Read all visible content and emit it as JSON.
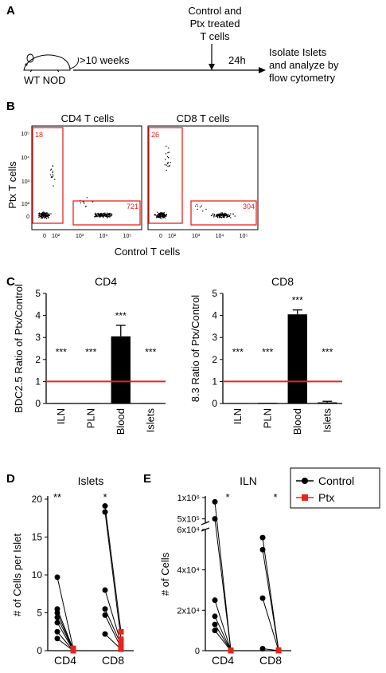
{
  "panels": {
    "A": {
      "letter": "A",
      "mouse_label": "WT NOD",
      "age_label": ">10 weeks",
      "treatment_label_line1": "Control and",
      "treatment_label_line2": "Ptx treated",
      "treatment_label_line3": "T cells",
      "time_label": "24h",
      "outcome_line1": "Isolate Islets",
      "outcome_line2": "and analyze by",
      "outcome_line3": "flow cytometry"
    },
    "B": {
      "letter": "B",
      "title_cd4": "CD4 T cells",
      "title_cd8": "CD8 T cells",
      "ylabel": "Ptx T cells",
      "xlabel": "Control T cells",
      "cd4_gate_ptx": "18",
      "cd4_gate_control": "721",
      "cd8_gate_ptx": "26",
      "cd8_gate_control": "304",
      "y_ticks": [
        "10⁵",
        "10⁴",
        "10³",
        "10²",
        "0"
      ],
      "x_ticks": [
        "0",
        "10²",
        "10³",
        "10⁴",
        "10⁵"
      ]
    },
    "C": {
      "letter": "C"
    },
    "D": {
      "letter": "D"
    },
    "E": {
      "letter": "E"
    }
  },
  "legend": {
    "control": "Control",
    "ptx": "Ptx"
  },
  "colors": {
    "control": "#000000",
    "ptx": "#e8231e",
    "gate": "#e8231e",
    "refline": "#e8231e"
  },
  "chart_data": [
    {
      "type": "bar",
      "panel": "C",
      "title": "CD4",
      "ylabel": "BDC2.5 Ratio of Ptx/Control",
      "categories": [
        "ILN",
        "PLN",
        "Blood",
        "Islets"
      ],
      "values": [
        0.02,
        0.02,
        3.05,
        0.02
      ],
      "errors": [
        0,
        0,
        0.5,
        0
      ],
      "significance": [
        "***",
        "***",
        "***",
        "***"
      ],
      "reference_line": 1,
      "ylim": [
        0,
        5
      ],
      "yticks": [
        "0",
        "1",
        "2",
        "3",
        "4",
        "5"
      ]
    },
    {
      "type": "bar",
      "panel": "C",
      "title": "CD8",
      "ylabel": "8.3 Ratio of Ptx/Control",
      "categories": [
        "ILN",
        "PLN",
        "Blood",
        "Islets"
      ],
      "values": [
        0.02,
        0.03,
        4.05,
        0.05
      ],
      "errors": [
        0,
        0,
        0.2,
        0.05
      ],
      "significance": [
        "***",
        "***",
        "***",
        "***"
      ],
      "reference_line": 1,
      "ylim": [
        0,
        5
      ],
      "yticks": [
        "0",
        "1",
        "2",
        "3",
        "4",
        "5"
      ]
    },
    {
      "type": "scatter",
      "panel": "D",
      "title": "Islets",
      "ylabel": "# of Cells per Islet",
      "groups": [
        "CD4",
        "CD8"
      ],
      "significance": [
        "**",
        "*"
      ],
      "ylim": [
        0,
        20
      ],
      "yticks": [
        "0",
        "5",
        "10",
        "15",
        "20"
      ],
      "series": [
        {
          "name": "Control",
          "CD4": [
            9.7,
            5.5,
            5.0,
            4.4,
            3.7,
            2.5,
            1.6
          ],
          "CD8": [
            19.1,
            18.3,
            8.0,
            5.5,
            4.7,
            2.2
          ]
        },
        {
          "name": "Ptx",
          "CD4": [
            0.3,
            0.2,
            0.1,
            0.1,
            0.05,
            0.0,
            0.0
          ],
          "CD8": [
            2.5,
            1.5,
            1.0,
            0.8,
            0.4,
            0.2
          ]
        }
      ]
    },
    {
      "type": "scatter",
      "panel": "E",
      "title": "ILN",
      "ylabel": "# of Cells",
      "groups": [
        "CD4",
        "CD8"
      ],
      "significance": [
        "*",
        "*"
      ],
      "ylim": [
        0,
        1000000
      ],
      "yticks_lower": [
        "0",
        "2x10⁴",
        "4x10⁴",
        "6x10⁴"
      ],
      "yticks_upper": [
        "5x10⁵",
        "1x10⁶"
      ],
      "series": [
        {
          "name": "Control",
          "CD4": [
            900000,
            500000,
            25000,
            17000,
            13000,
            10000
          ],
          "CD8": [
            56000,
            50000,
            26000,
            1000
          ]
        },
        {
          "name": "Ptx",
          "CD4": [
            200,
            150,
            100,
            80,
            50,
            20
          ],
          "CD8": [
            300,
            200,
            100,
            50
          ]
        }
      ]
    }
  ]
}
